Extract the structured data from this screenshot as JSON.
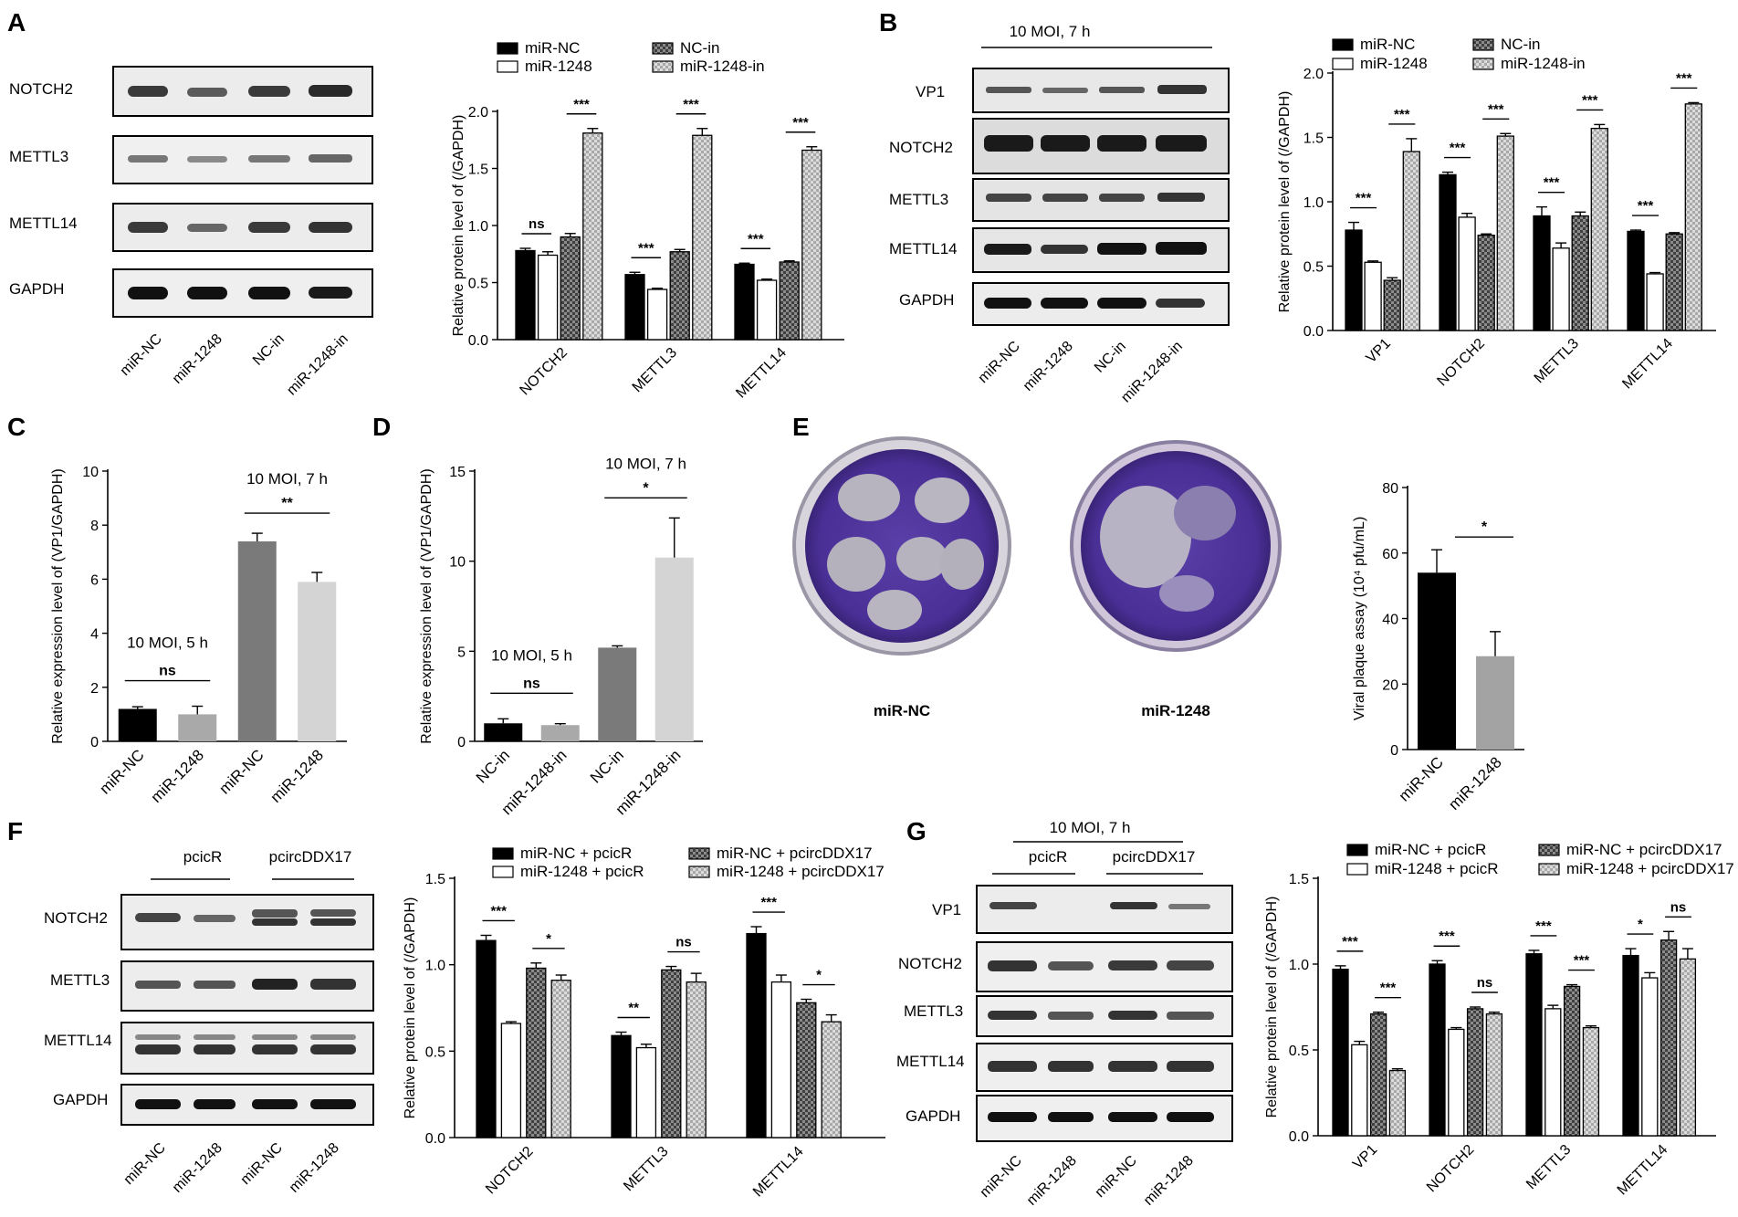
{
  "panel_letters": [
    "A",
    "B",
    "C",
    "D",
    "E",
    "F",
    "G"
  ],
  "colors": {
    "black": "#000000",
    "white": "#ffffff",
    "dark_gray": "#7a7a7a",
    "light_gray": "#c8c8c8",
    "ncin_check": "#595959",
    "in_check": "#b5b5b5"
  },
  "blots": {
    "A": {
      "rows": [
        "NOTCH2",
        "METTL3",
        "METTL14",
        "GAPDH"
      ],
      "lanes": [
        "miR-NC",
        "miR-1248",
        "NC-in",
        "miR-1248-in"
      ]
    },
    "B": {
      "condition": "10 MOI, 7 h",
      "rows": [
        "VP1",
        "NOTCH2",
        "METTL3",
        "METTL14",
        "GAPDH"
      ],
      "lanes": [
        "miR-NC",
        "miR-1248",
        "NC-in",
        "miR-1248-in"
      ]
    },
    "F": {
      "groups": [
        "pcicR",
        "pcircDDX17"
      ],
      "rows": [
        "NOTCH2",
        "METTL3",
        "METTL14",
        "GAPDH"
      ],
      "lanes": [
        "miR-NC",
        "miR-1248",
        "miR-NC",
        "miR-1248"
      ]
    },
    "G": {
      "condition": "10 MOI, 7 h",
      "groups": [
        "pcicR",
        "pcircDDX17"
      ],
      "rows": [
        "VP1",
        "NOTCH2",
        "METTL3",
        "METTL14",
        "GAPDH"
      ],
      "lanes": [
        "miR-NC",
        "miR-1248",
        "miR-NC",
        "miR-1248"
      ]
    }
  },
  "plaque": {
    "labels": [
      "miR-NC",
      "miR-1248"
    ]
  },
  "chart_data": [
    {
      "panel": "A",
      "type": "bar",
      "ylabel": "Relative protein level of (/GAPDH)",
      "ylim": [
        0,
        2.0
      ],
      "yticks": [
        "0.0",
        "0.5",
        "1.0",
        "1.5",
        "2.0"
      ],
      "categories": [
        "NOTCH2",
        "METTL3",
        "METTL14"
      ],
      "series": [
        {
          "name": "miR-NC",
          "values": [
            0.78,
            0.57,
            0.66
          ]
        },
        {
          "name": "miR-1248",
          "values": [
            0.74,
            0.44,
            0.52
          ]
        },
        {
          "name": "NC-in",
          "values": [
            0.9,
            0.77,
            0.68
          ]
        },
        {
          "name": "miR-1248-in",
          "values": [
            1.81,
            1.79,
            1.66
          ]
        }
      ],
      "errors": [
        [
          0.02,
          0.02,
          0.01
        ],
        [
          0.03,
          0.01,
          0.01
        ],
        [
          0.03,
          0.02,
          0.01
        ],
        [
          0.04,
          0.06,
          0.03
        ]
      ],
      "sig": [
        "ns",
        "***",
        "***",
        "***",
        "***",
        "***"
      ],
      "legend": "top"
    },
    {
      "panel": "B",
      "type": "bar",
      "ylabel": "Relative protein level of (/GAPDH)",
      "ylim": [
        0,
        2.0
      ],
      "yticks": [
        "0.0",
        "0.5",
        "1.0",
        "1.5",
        "2.0"
      ],
      "categories": [
        "VP1",
        "NOTCH2",
        "METTL3",
        "METTL14"
      ],
      "series": [
        {
          "name": "miR-NC",
          "values": [
            0.78,
            1.21,
            0.89,
            0.77
          ]
        },
        {
          "name": "miR-1248",
          "values": [
            0.53,
            0.88,
            0.64,
            0.44
          ]
        },
        {
          "name": "NC-in",
          "values": [
            0.39,
            0.74,
            0.89,
            0.75
          ]
        },
        {
          "name": "miR-1248-in",
          "values": [
            1.39,
            1.51,
            1.57,
            1.76
          ]
        }
      ],
      "errors": [
        [
          0.06,
          0.02,
          0.07,
          0.01
        ],
        [
          0.01,
          0.03,
          0.04,
          0.01
        ],
        [
          0.02,
          0.01,
          0.03,
          0.01
        ],
        [
          0.1,
          0.02,
          0.03,
          0.01
        ]
      ],
      "sig": [
        "***",
        "***",
        "***",
        "***",
        "***",
        "***",
        "***",
        "***"
      ],
      "legend": "top"
    },
    {
      "panel": "C",
      "type": "bar",
      "ylabel": "Relative expression level of (VP1/GAPDH)",
      "ylim": [
        0,
        10
      ],
      "yticks": [
        "0",
        "2",
        "4",
        "6",
        "8",
        "10"
      ],
      "categories": [
        "miR-NC",
        "miR-1248",
        "miR-NC",
        "miR-1248"
      ],
      "values": [
        1.2,
        1.0,
        7.4,
        5.9
      ],
      "errors": [
        0.08,
        0.3,
        0.3,
        0.35
      ],
      "annotations": [
        "10 MOI, 5 h",
        "ns",
        "10 MOI, 7 h",
        "**"
      ]
    },
    {
      "panel": "D",
      "type": "bar",
      "ylabel": "Relative expression level of (VP1/GAPDH)",
      "ylim": [
        0,
        15
      ],
      "yticks": [
        "0",
        "5",
        "10",
        "15"
      ],
      "categories": [
        "NC-in",
        "miR-1248-in",
        "NC-in",
        "miR-1248-in"
      ],
      "values": [
        1.0,
        0.9,
        5.2,
        10.2
      ],
      "errors": [
        0.25,
        0.08,
        0.1,
        2.2
      ],
      "annotations": [
        "10 MOI, 5 h",
        "ns",
        "10 MOI, 7 h",
        "*"
      ]
    },
    {
      "panel": "E",
      "type": "bar",
      "ylabel": "Viral plaque assay (10⁴ pfu/mL)",
      "ylim": [
        0,
        80
      ],
      "yticks": [
        "0",
        "20",
        "40",
        "60",
        "80"
      ],
      "categories": [
        "miR-NC",
        "miR-1248"
      ],
      "values": [
        54,
        28.5
      ],
      "errors": [
        7,
        7.5
      ],
      "annotations": [
        "*"
      ]
    },
    {
      "panel": "F",
      "type": "bar",
      "ylabel": "Relative protein level of (/GAPDH)",
      "ylim": [
        0,
        1.5
      ],
      "yticks": [
        "0.0",
        "0.5",
        "1.0",
        "1.5"
      ],
      "categories": [
        "NOTCH2",
        "METTL3",
        "METTL14"
      ],
      "series": [
        {
          "name": "miR-NC + pcicR",
          "values": [
            1.14,
            0.59,
            1.18
          ]
        },
        {
          "name": "miR-1248 + pcicR",
          "values": [
            0.66,
            0.52,
            0.9
          ]
        },
        {
          "name": "miR-NC + pcircDDX17",
          "values": [
            0.98,
            0.97,
            0.78
          ]
        },
        {
          "name": "miR-1248 + pcircDDX17",
          "values": [
            0.91,
            0.9,
            0.67
          ]
        }
      ],
      "errors": [
        [
          0.03,
          0.02,
          0.04
        ],
        [
          0.01,
          0.02,
          0.04
        ],
        [
          0.03,
          0.02,
          0.02
        ],
        [
          0.03,
          0.05,
          0.04
        ]
      ],
      "sig": [
        "***",
        "*",
        "**",
        "ns",
        "***",
        "*"
      ],
      "legend": "top"
    },
    {
      "panel": "G",
      "type": "bar",
      "ylabel": "Relative protein level of (/GAPDH)",
      "ylim": [
        0,
        1.5
      ],
      "yticks": [
        "0.0",
        "0.5",
        "1.0",
        "1.5"
      ],
      "categories": [
        "VP1",
        "NOTCH2",
        "METTL3",
        "METTL14"
      ],
      "series": [
        {
          "name": "miR-NC + pcicR",
          "values": [
            0.97,
            1.0,
            1.06,
            1.05
          ]
        },
        {
          "name": "miR-1248 + pcicR",
          "values": [
            0.53,
            0.62,
            0.74,
            0.92
          ]
        },
        {
          "name": "miR-NC + pcircDDX17",
          "values": [
            0.71,
            0.74,
            0.87,
            1.14
          ]
        },
        {
          "name": "miR-1248 + pcircDDX17",
          "values": [
            0.38,
            0.71,
            0.63,
            1.03
          ]
        }
      ],
      "errors": [
        [
          0.02,
          0.02,
          0.02,
          0.04
        ],
        [
          0.02,
          0.01,
          0.02,
          0.03
        ],
        [
          0.01,
          0.01,
          0.01,
          0.05
        ],
        [
          0.01,
          0.01,
          0.01,
          0.06
        ]
      ],
      "sig": [
        "***",
        "***",
        "***",
        "ns",
        "***",
        "***",
        "*",
        "ns"
      ],
      "legend": "top"
    }
  ]
}
